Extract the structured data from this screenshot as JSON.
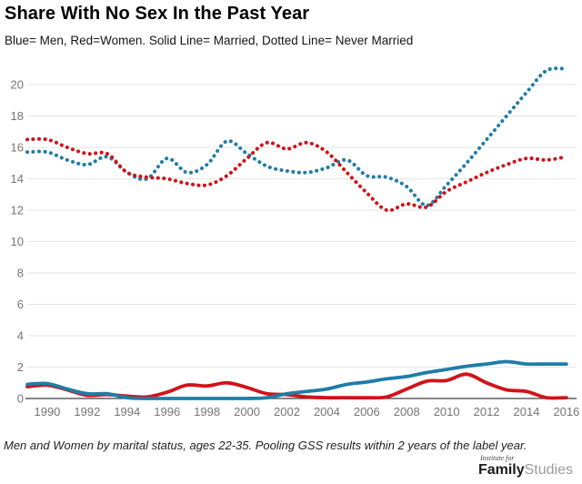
{
  "header": {
    "title": "Share With No Sex In the Past Year",
    "subtitle": "Blue= Men, Red=Women. Solid Line= Married, Dotted Line= Never Married"
  },
  "footer": {
    "note": "Men and Women by marital status, ages 22-35. Pooling GSS results within 2 years of the label year.",
    "logo_top": "Institute for",
    "logo_bold": "Family",
    "logo_light": "Studies"
  },
  "colors": {
    "men_blue": "#1f7da7",
    "women_red": "#d01319",
    "grid": "#e6e6e6",
    "axis": "#3d3d3d",
    "tick_text": "#757575"
  },
  "chart_data": {
    "type": "line",
    "title": "Share With No Sex In the Past Year",
    "x": [
      1989,
      1990,
      1991,
      1992,
      1993,
      1994,
      1995,
      1996,
      1997,
      1998,
      1999,
      2000,
      2001,
      2002,
      2003,
      2004,
      2005,
      2006,
      2007,
      2008,
      2009,
      2010,
      2011,
      2012,
      2013,
      2014,
      2015,
      2016
    ],
    "series": [
      {
        "name": "Men, Never Married",
        "color_key": "men_blue",
        "style": "dotted",
        "values": [
          15.7,
          15.7,
          15.2,
          14.9,
          15.4,
          14.4,
          14.0,
          15.3,
          14.4,
          14.9,
          16.4,
          15.6,
          14.8,
          14.5,
          14.4,
          14.7,
          15.2,
          14.2,
          14.1,
          13.5,
          12.3,
          13.6,
          15.0,
          16.5,
          18.0,
          19.5,
          20.9,
          21.0
        ]
      },
      {
        "name": "Women, Never Married",
        "color_key": "women_red",
        "style": "dotted",
        "values": [
          16.5,
          16.5,
          16.0,
          15.6,
          15.6,
          14.4,
          14.1,
          14.0,
          13.7,
          13.6,
          14.2,
          15.3,
          16.3,
          15.9,
          16.3,
          15.7,
          14.4,
          13.1,
          12.0,
          12.4,
          12.2,
          13.2,
          13.8,
          14.4,
          14.9,
          15.3,
          15.2,
          15.4
        ]
      },
      {
        "name": "Women, Married",
        "color_key": "women_red",
        "style": "solid",
        "values": [
          0.75,
          0.85,
          0.55,
          0.2,
          0.25,
          0.15,
          0.1,
          0.4,
          0.85,
          0.8,
          1.0,
          0.7,
          0.3,
          0.25,
          0.1,
          0.05,
          0.05,
          0.05,
          0.1,
          0.6,
          1.1,
          1.15,
          1.55,
          1.0,
          0.55,
          0.45,
          0.05,
          0.05
        ]
      },
      {
        "name": "Men, Married",
        "color_key": "men_blue",
        "style": "solid",
        "values": [
          0.9,
          0.95,
          0.6,
          0.3,
          0.3,
          0.05,
          0.0,
          0.0,
          0.0,
          0.0,
          0.0,
          0.0,
          0.05,
          0.3,
          0.45,
          0.6,
          0.9,
          1.05,
          1.25,
          1.4,
          1.65,
          1.85,
          2.05,
          2.2,
          2.35,
          2.2,
          2.2,
          2.2
        ]
      }
    ],
    "xticks": [
      1990,
      1992,
      1994,
      1996,
      1998,
      2000,
      2002,
      2004,
      2006,
      2008,
      2010,
      2012,
      2014,
      2016
    ],
    "yticks": [
      0,
      2,
      4,
      6,
      8,
      10,
      12,
      14,
      16,
      18,
      20
    ],
    "xlim": [
      1989,
      2016
    ],
    "ylim": [
      0,
      21.8
    ],
    "grid": "horizontal",
    "legend_position": "none (encoded in subtitle)"
  }
}
